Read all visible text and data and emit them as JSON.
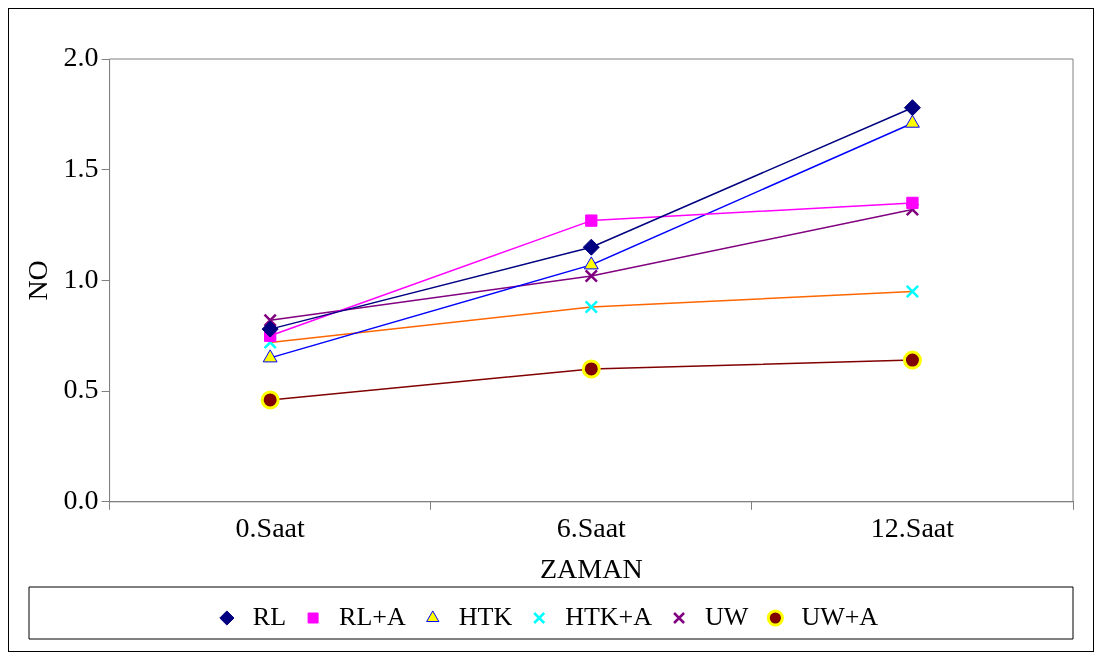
{
  "chart_data": {
    "type": "line",
    "xlabel": "ZAMAN",
    "ylabel": "NO",
    "categories": [
      "0.Saat",
      "6.Saat",
      "12.Saat"
    ],
    "ylim": [
      0,
      2
    ],
    "yticks": [
      {
        "value": 0,
        "label": "0.0"
      },
      {
        "value": 0.5,
        "label": "0.5"
      },
      {
        "value": 1,
        "label": "1.0"
      },
      {
        "value": 1.5,
        "label": "1.5"
      },
      {
        "value": 2,
        "label": "2.0"
      }
    ],
    "grid": false,
    "legend": "bottom",
    "line_style": "solid",
    "series": [
      {
        "name": "RL",
        "color": "#000080",
        "marker": "diamond",
        "values": [
          0.78,
          1.15,
          1.78
        ]
      },
      {
        "name": "RL+A",
        "color": "#ff00ff",
        "marker": "square",
        "values": [
          0.75,
          1.27,
          1.35
        ]
      },
      {
        "name": "HTK",
        "color": "#0000ff",
        "marker": "triangle",
        "colors": [
          "#ffff00",
          "#ffff00",
          "#ffff00"
        ],
        "values": [
          0.65,
          1.07,
          1.71
        ]
      },
      {
        "name": "HTK+A",
        "color": "#ff6600",
        "marker": "cross",
        "colors": [
          "#00ffff",
          "#00ffff",
          "#00ffff"
        ],
        "values": [
          0.72,
          0.88,
          0.95
        ]
      },
      {
        "name": "UW",
        "color": "#800080",
        "marker": "cross",
        "values": [
          0.82,
          1.02,
          1.32
        ]
      },
      {
        "name": "UW+A",
        "color": "#800000",
        "marker": "circle",
        "colors": [
          "#ffff00",
          "#ffff00",
          "#ffff00"
        ],
        "values": [
          0.46,
          0.6,
          0.64
        ]
      }
    ]
  }
}
